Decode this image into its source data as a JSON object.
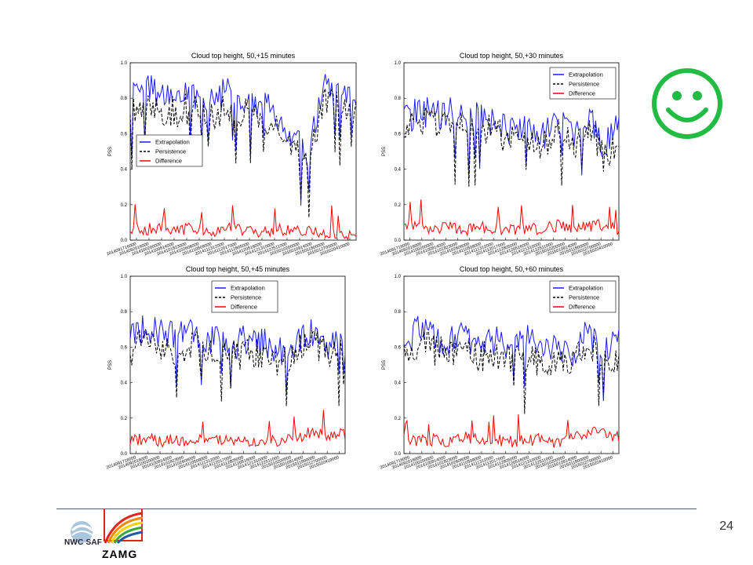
{
  "slide": {
    "page_number": "24"
  },
  "logos": {
    "nwc_saf": "NWC SAF",
    "zamg": "ZAMG"
  },
  "icons": {
    "smiley": "smiley-face-icon"
  },
  "colors": {
    "extrapolation": "#1a1aff",
    "persistence": "#000000",
    "difference": "#ff0000",
    "smiley": "#22bb44"
  },
  "chart_data": [
    {
      "type": "line",
      "title": "Cloud top height, 50,+15 minutes",
      "ylabel": "PSS",
      "ylim": [
        0.0,
        1.0
      ],
      "yticks": [
        "0.0",
        "0.2",
        "0.4",
        "0.6",
        "0.8",
        "1.0"
      ],
      "xticks": [
        "2014091716000",
        "2014092016000",
        "2014100200000",
        "2014100814000",
        "2014101823000",
        "2014102606000",
        "2014110509000",
        "2014111312000",
        "2014112017000",
        "2014112805000",
        "2014120516000",
        "2014121310000",
        "2014122511000",
        "2015010200000",
        "2015010914000",
        "2015011800000",
        "2015012700000",
        "2015020410000"
      ],
      "legend": {
        "placement": "center-left",
        "entries": [
          "Extrapolation",
          "Persistence",
          "Difference"
        ]
      },
      "series": [
        {
          "name": "Extrapolation",
          "values": [
            0.78,
            0.86,
            0.82,
            0.8,
            0.83,
            0.78,
            0.84,
            0.8,
            0.78,
            0.7,
            0.6,
            0.45,
            0.87,
            0.8,
            0.76
          ]
        },
        {
          "name": "Persistence",
          "values": [
            0.72,
            0.8,
            0.74,
            0.72,
            0.76,
            0.7,
            0.76,
            0.72,
            0.72,
            0.62,
            0.52,
            0.4,
            0.8,
            0.74,
            0.7
          ]
        },
        {
          "name": "Difference",
          "values": [
            0.07,
            0.06,
            0.08,
            0.06,
            0.07,
            0.05,
            0.07,
            0.06,
            0.04,
            0.06,
            0.05,
            0.05,
            0.05,
            0.04,
            0.03
          ]
        }
      ]
    },
    {
      "type": "line",
      "title": "Cloud top height, 50,+30 minutes",
      "ylabel": "PSS",
      "ylim": [
        0.0,
        1.0
      ],
      "yticks": [
        "0.0",
        "0.2",
        "0.4",
        "0.6",
        "0.8",
        "1.0"
      ],
      "xticks": [
        "2014091716000",
        "2014092016000",
        "2014100200000",
        "2014100814000",
        "2014101823000",
        "2014102606000",
        "2014110509000",
        "2014111312000",
        "2014112017000",
        "2014112805000",
        "2014120516000",
        "2014121310000",
        "2014122511000",
        "2015010200000",
        "2015010914000",
        "2015011800000",
        "2015012700000",
        "2015020410000"
      ],
      "legend": {
        "placement": "top-right",
        "entries": [
          "Extrapolation",
          "Persistence",
          "Difference"
        ]
      },
      "series": [
        {
          "name": "Extrapolation",
          "values": [
            0.66,
            0.74,
            0.7,
            0.72,
            0.68,
            0.7,
            0.66,
            0.62,
            0.64,
            0.58,
            0.66,
            0.6,
            0.7,
            0.52,
            0.64
          ]
        },
        {
          "name": "Persistence",
          "values": [
            0.6,
            0.68,
            0.64,
            0.66,
            0.62,
            0.64,
            0.6,
            0.56,
            0.58,
            0.52,
            0.6,
            0.54,
            0.64,
            0.46,
            0.58
          ]
        },
        {
          "name": "Difference",
          "values": [
            0.07,
            0.08,
            0.06,
            0.08,
            0.06,
            0.07,
            0.07,
            0.06,
            0.07,
            0.06,
            0.08,
            0.07,
            0.08,
            0.09,
            0.06
          ]
        }
      ]
    },
    {
      "type": "line",
      "title": "Cloud top height, 50,+45 minutes",
      "ylabel": "PSS",
      "ylim": [
        0.0,
        1.0
      ],
      "yticks": [
        "0.0",
        "0.2",
        "0.4",
        "0.6",
        "0.8",
        "1.0"
      ],
      "xticks": [
        "2014091716000",
        "2014092016000",
        "2014100200000",
        "2014100814000",
        "2014101823000",
        "2014102606000",
        "2014110509000",
        "2014111312000",
        "2014112017000",
        "2014112805000",
        "2014120516000",
        "2014121310000",
        "2014122511000",
        "2015010200000",
        "2015010914000",
        "2015011800000",
        "2015012700000",
        "2015020410000"
      ],
      "legend": {
        "placement": "top-center",
        "entries": [
          "Extrapolation",
          "Persistence",
          "Difference"
        ]
      },
      "series": [
        {
          "name": "Extrapolation",
          "values": [
            0.64,
            0.72,
            0.68,
            0.66,
            0.7,
            0.64,
            0.66,
            0.62,
            0.66,
            0.6,
            0.58,
            0.66,
            0.7,
            0.6,
            0.64
          ]
        },
        {
          "name": "Persistence",
          "values": [
            0.58,
            0.64,
            0.6,
            0.58,
            0.62,
            0.56,
            0.58,
            0.56,
            0.58,
            0.54,
            0.52,
            0.58,
            0.64,
            0.54,
            0.58
          ]
        },
        {
          "name": "Difference",
          "values": [
            0.07,
            0.08,
            0.07,
            0.08,
            0.07,
            0.09,
            0.07,
            0.08,
            0.06,
            0.07,
            0.07,
            0.1,
            0.12,
            0.1,
            0.11
          ]
        }
      ]
    },
    {
      "type": "line",
      "title": "Cloud top height, 50,+60 minutes",
      "ylabel": "PSS",
      "ylim": [
        0.0,
        1.0
      ],
      "yticks": [
        "0.0",
        "0.2",
        "0.4",
        "0.6",
        "0.8",
        "1.0"
      ],
      "xticks": [
        "2014091716000",
        "2014092016000",
        "2014100200000",
        "2014100814000",
        "2014101823000",
        "2014102606000",
        "2014110509000",
        "2014111312000",
        "2014112017000",
        "2014112805000",
        "2014120516000",
        "2014121310000",
        "2014122511000",
        "2015010200000",
        "2015010914000",
        "2015011800000",
        "2015012700000",
        "2015020410000"
      ],
      "legend": {
        "placement": "top-right",
        "entries": [
          "Extrapolation",
          "Persistence",
          "Difference"
        ]
      },
      "series": [
        {
          "name": "Extrapolation",
          "values": [
            0.62,
            0.7,
            0.66,
            0.64,
            0.66,
            0.6,
            0.64,
            0.62,
            0.64,
            0.56,
            0.6,
            0.58,
            0.68,
            0.58,
            0.62
          ]
        },
        {
          "name": "Persistence",
          "values": [
            0.56,
            0.62,
            0.58,
            0.56,
            0.58,
            0.54,
            0.56,
            0.54,
            0.56,
            0.5,
            0.54,
            0.52,
            0.62,
            0.52,
            0.56
          ]
        },
        {
          "name": "Difference",
          "values": [
            0.07,
            0.07,
            0.08,
            0.07,
            0.09,
            0.07,
            0.08,
            0.07,
            0.07,
            0.08,
            0.06,
            0.1,
            0.12,
            0.11,
            0.1
          ]
        }
      ]
    }
  ]
}
